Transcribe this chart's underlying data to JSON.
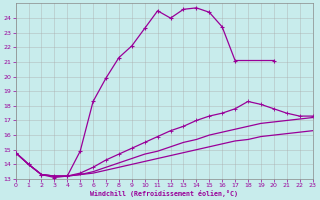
{
  "bg_color": "#c8ecec",
  "line_color": "#990099",
  "grid_color": "#aaaaaa",
  "xlabel": "Windchill (Refroidissement éolien,°C)",
  "xlabel_color": "#990099",
  "xmin": 0,
  "xmax": 23,
  "ymin": 13,
  "ymax": 25,
  "yticks": [
    13,
    14,
    15,
    16,
    17,
    18,
    19,
    20,
    21,
    22,
    23,
    24
  ],
  "xticks": [
    0,
    1,
    2,
    3,
    4,
    5,
    6,
    7,
    8,
    9,
    10,
    11,
    12,
    13,
    14,
    15,
    16,
    17,
    18,
    19,
    20,
    21,
    22,
    23
  ],
  "curve1_x": [
    0,
    1,
    2,
    3,
    4,
    5,
    6,
    7,
    8,
    9,
    10,
    11,
    12,
    13,
    14,
    15,
    16,
    17,
    20
  ],
  "curve1_y": [
    14.8,
    14.0,
    13.3,
    13.1,
    13.2,
    14.9,
    18.3,
    19.9,
    21.3,
    22.1,
    23.3,
    24.5,
    24.0,
    24.6,
    24.7,
    24.4,
    23.4,
    21.1,
    21.1
  ],
  "curve2_x": [
    0,
    1,
    2,
    3,
    4,
    5,
    6,
    7,
    8,
    9,
    10,
    11,
    12,
    13,
    14,
    15,
    16,
    17,
    18,
    19,
    20,
    21,
    22,
    23
  ],
  "curve2_y": [
    14.8,
    14.0,
    13.3,
    13.2,
    13.2,
    13.4,
    13.8,
    14.3,
    14.7,
    15.1,
    15.5,
    15.9,
    16.3,
    16.6,
    17.0,
    17.3,
    17.5,
    17.8,
    18.3,
    18.1,
    17.8,
    17.5,
    17.3,
    17.3
  ],
  "curve3_x": [
    0,
    1,
    2,
    3,
    4,
    5,
    6,
    7,
    8,
    9,
    10,
    11,
    12,
    13,
    14,
    15,
    16,
    17,
    18,
    19,
    20,
    21,
    22,
    23
  ],
  "curve3_y": [
    14.8,
    14.0,
    13.3,
    13.2,
    13.2,
    13.3,
    13.5,
    13.8,
    14.1,
    14.4,
    14.7,
    14.9,
    15.2,
    15.5,
    15.7,
    16.0,
    16.2,
    16.4,
    16.6,
    16.8,
    16.9,
    17.0,
    17.1,
    17.2
  ],
  "curve4_x": [
    0,
    1,
    2,
    3,
    4,
    5,
    6,
    7,
    8,
    9,
    10,
    11,
    12,
    13,
    14,
    15,
    16,
    17,
    18,
    19,
    20,
    21,
    22,
    23
  ],
  "curve4_y": [
    14.8,
    14.0,
    13.3,
    13.2,
    13.2,
    13.3,
    13.4,
    13.6,
    13.8,
    14.0,
    14.2,
    14.4,
    14.6,
    14.8,
    15.0,
    15.2,
    15.4,
    15.6,
    15.7,
    15.9,
    16.0,
    16.1,
    16.2,
    16.3
  ]
}
